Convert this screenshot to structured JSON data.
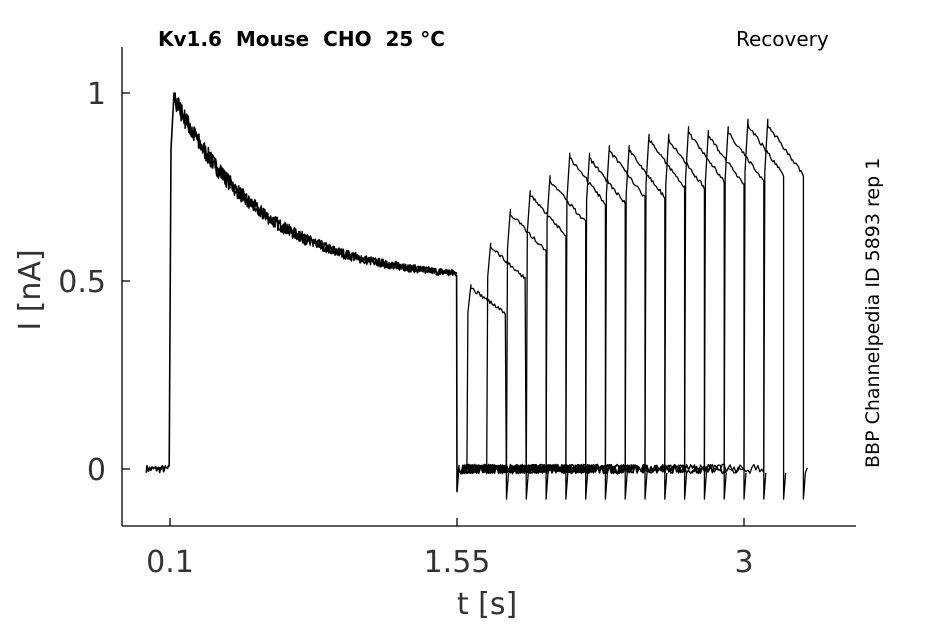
{
  "header": {
    "title": "Kv1.6  Mouse  CHO  25 °C",
    "protocol": "Recovery"
  },
  "side_label": "BBP Channelpedia ID 5893 rep 1",
  "chart_data": {
    "type": "line",
    "title": "Kv1.6  Mouse  CHO  25 °C",
    "xlabel": "t [s]",
    "ylabel": "I [nA]",
    "xlim": [
      -0.15,
      3.55
    ],
    "ylim": [
      -0.15,
      1.12
    ],
    "xticks": [
      0.1,
      1.55,
      3
    ],
    "xtick_labels": [
      "0.1",
      "1.55",
      "3"
    ],
    "yticks": [
      0,
      0.5,
      1
    ],
    "ytick_labels": [
      "0",
      "0.5",
      "1"
    ],
    "grid": false,
    "color": "#000000",
    "conditioning_pulse": {
      "start": 0.1,
      "end": 1.55,
      "peak": 1.0,
      "steady_state": 0.5
    },
    "series": [
      {
        "test_start": 1.6,
        "test_end": 1.8,
        "peak": 0.49
      },
      {
        "test_start": 1.7,
        "test_end": 1.9,
        "peak": 0.6
      },
      {
        "test_start": 1.8,
        "test_end": 2.0,
        "peak": 0.69
      },
      {
        "test_start": 1.9,
        "test_end": 2.1,
        "peak": 0.74
      },
      {
        "test_start": 2.0,
        "test_end": 2.2,
        "peak": 0.78
      },
      {
        "test_start": 2.1,
        "test_end": 2.3,
        "peak": 0.84
      },
      {
        "test_start": 2.2,
        "test_end": 2.4,
        "peak": 0.84
      },
      {
        "test_start": 2.3,
        "test_end": 2.5,
        "peak": 0.86
      },
      {
        "test_start": 2.4,
        "test_end": 2.6,
        "peak": 0.86
      },
      {
        "test_start": 2.5,
        "test_end": 2.7,
        "peak": 0.89
      },
      {
        "test_start": 2.6,
        "test_end": 2.8,
        "peak": 0.89
      },
      {
        "test_start": 2.7,
        "test_end": 2.9,
        "peak": 0.91
      },
      {
        "test_start": 2.8,
        "test_end": 3.0,
        "peak": 0.9
      },
      {
        "test_start": 2.9,
        "test_end": 3.1,
        "peak": 0.91
      },
      {
        "test_start": 3.0,
        "test_end": 3.2,
        "peak": 0.93
      },
      {
        "test_start": 3.1,
        "test_end": 3.3,
        "peak": 0.93
      }
    ]
  }
}
